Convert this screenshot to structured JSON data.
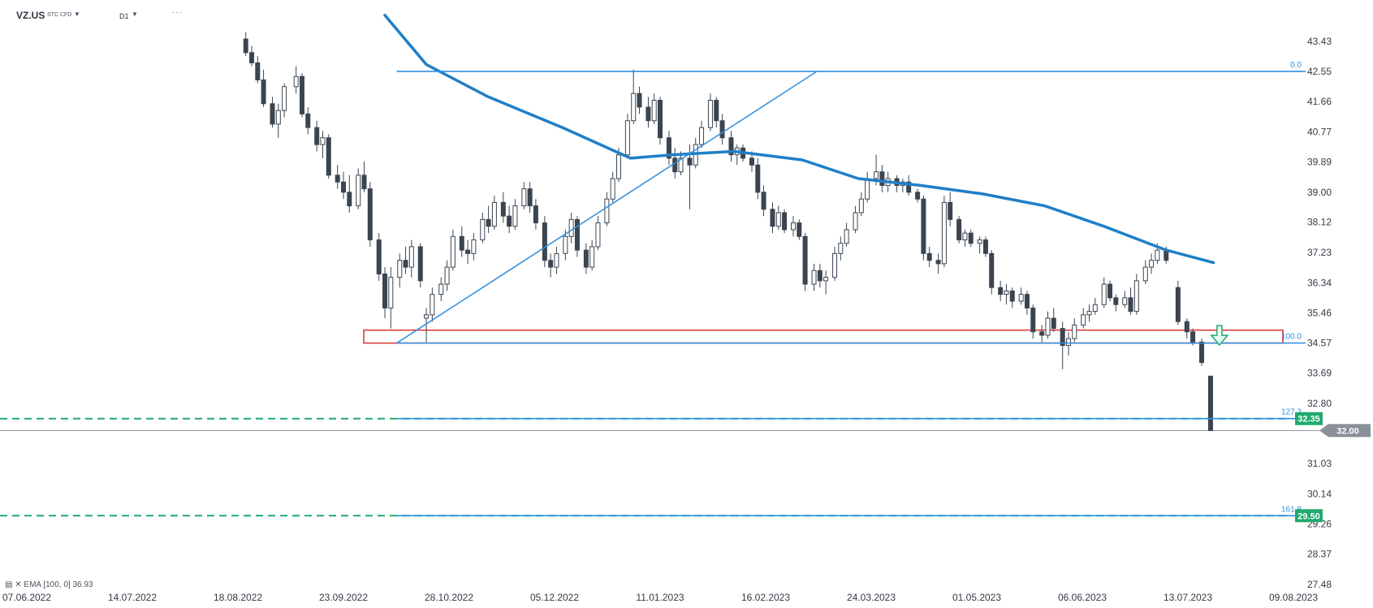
{
  "header": {
    "symbol": "VZ.US",
    "instrument_type": "STC CFD",
    "timeframe": "D1"
  },
  "indicator_legend": {
    "name": "EMA",
    "params": "[100, 0]",
    "value": "36.93"
  },
  "chart_data": {
    "type": "candlestick",
    "x_tick_labels": [
      "07.06.2022",
      "14.07.2022",
      "18.08.2022",
      "23.09.2022",
      "28.10.2022",
      "05.12.2022",
      "11.01.2023",
      "16.02.2023",
      "24.03.2023",
      "01.05.2023",
      "06.06.2023",
      "13.07.2023",
      "09.08.2023"
    ],
    "y_tick_labels": [
      "43.43",
      "42.55",
      "41.66",
      "40.77",
      "39.89",
      "39.00",
      "38.12",
      "37.23",
      "36.34",
      "35.46",
      "34.57",
      "33.69",
      "32.80",
      "31.03",
      "30.14",
      "29.26",
      "28.37",
      "27.48"
    ],
    "ylim": [
      27.48,
      43.43
    ],
    "current_price": "32.00",
    "fibonacci": [
      {
        "level": "0.0",
        "price": 42.55
      },
      {
        "level": "100.0",
        "price": 34.57
      },
      {
        "level": "127.2",
        "price": 32.35
      },
      {
        "level": "161.8",
        "price": 29.5
      }
    ],
    "horizontal_levels": [
      {
        "label": "32.35",
        "price": 32.35,
        "style": "dashed",
        "color": "#1faa6e"
      },
      {
        "label": "29.50",
        "price": 29.5,
        "style": "dashed",
        "color": "#1faa6e"
      }
    ],
    "support_zone": {
      "low": 34.57,
      "high": 34.95,
      "color": "#e03a3a"
    },
    "ema_100": [
      {
        "date": "2022-10-06",
        "value": 44.2
      },
      {
        "date": "2022-10-20",
        "value": 42.75
      },
      {
        "date": "2022-11-10",
        "value": 41.8
      },
      {
        "date": "2022-12-05",
        "value": 40.9
      },
      {
        "date": "2022-12-28",
        "value": 40.0
      },
      {
        "date": "2023-01-11",
        "value": 40.1
      },
      {
        "date": "2023-02-01",
        "value": 40.2
      },
      {
        "date": "2023-02-24",
        "value": 39.95
      },
      {
        "date": "2023-03-15",
        "value": 39.4
      },
      {
        "date": "2023-04-05",
        "value": 39.2
      },
      {
        "date": "2023-04-26",
        "value": 38.95
      },
      {
        "date": "2023-05-17",
        "value": 38.6
      },
      {
        "date": "2023-06-06",
        "value": 38.0
      },
      {
        "date": "2023-06-27",
        "value": 37.3
      },
      {
        "date": "2023-07-13",
        "value": 36.93
      }
    ],
    "trend_line": [
      {
        "date": "2022-10-10",
        "value": 34.57
      },
      {
        "date": "2023-03-01",
        "value": 42.55
      }
    ],
    "signal_arrow": {
      "direction": "down",
      "date": "2023-07-15",
      "price": 34.75,
      "color": "#1faa6e"
    },
    "candles_ohlc": [
      {
        "date": "2022-08-20",
        "o": 43.5,
        "h": 43.7,
        "l": 43.0,
        "c": 43.1
      },
      {
        "date": "2022-08-22",
        "o": 43.1,
        "h": 43.3,
        "l": 42.7,
        "c": 42.8
      },
      {
        "date": "2022-08-24",
        "o": 42.8,
        "h": 43.0,
        "l": 42.2,
        "c": 42.3
      },
      {
        "date": "2022-08-26",
        "o": 42.3,
        "h": 42.6,
        "l": 41.5,
        "c": 41.6
      },
      {
        "date": "2022-08-29",
        "o": 41.6,
        "h": 41.8,
        "l": 40.9,
        "c": 41.0
      },
      {
        "date": "2022-08-31",
        "o": 41.0,
        "h": 41.6,
        "l": 40.6,
        "c": 41.4
      },
      {
        "date": "2022-09-02",
        "o": 41.4,
        "h": 42.2,
        "l": 41.2,
        "c": 42.1
      },
      {
        "date": "2022-09-06",
        "o": 42.1,
        "h": 42.7,
        "l": 41.9,
        "c": 42.4
      },
      {
        "date": "2022-09-08",
        "o": 42.4,
        "h": 42.5,
        "l": 41.2,
        "c": 41.3
      },
      {
        "date": "2022-09-10",
        "o": 41.3,
        "h": 41.5,
        "l": 40.7,
        "c": 40.9
      },
      {
        "date": "2022-09-13",
        "o": 40.9,
        "h": 41.1,
        "l": 40.2,
        "c": 40.4
      },
      {
        "date": "2022-09-15",
        "o": 40.4,
        "h": 40.8,
        "l": 40.0,
        "c": 40.6
      },
      {
        "date": "2022-09-17",
        "o": 40.6,
        "h": 40.7,
        "l": 39.4,
        "c": 39.5
      },
      {
        "date": "2022-09-20",
        "o": 39.5,
        "h": 39.8,
        "l": 39.1,
        "c": 39.3
      },
      {
        "date": "2022-09-22",
        "o": 39.3,
        "h": 39.6,
        "l": 38.8,
        "c": 39.0
      },
      {
        "date": "2022-09-24",
        "o": 39.0,
        "h": 39.5,
        "l": 38.4,
        "c": 38.6
      },
      {
        "date": "2022-09-27",
        "o": 38.6,
        "h": 39.7,
        "l": 38.5,
        "c": 39.5
      },
      {
        "date": "2022-09-29",
        "o": 39.5,
        "h": 39.9,
        "l": 39.0,
        "c": 39.1
      },
      {
        "date": "2022-10-01",
        "o": 39.1,
        "h": 39.3,
        "l": 37.4,
        "c": 37.6
      },
      {
        "date": "2022-10-04",
        "o": 37.6,
        "h": 37.8,
        "l": 36.4,
        "c": 36.6
      },
      {
        "date": "2022-10-06",
        "o": 36.6,
        "h": 36.8,
        "l": 35.3,
        "c": 35.6
      },
      {
        "date": "2022-10-08",
        "o": 35.6,
        "h": 36.8,
        "l": 35.0,
        "c": 36.5
      },
      {
        "date": "2022-10-11",
        "o": 36.5,
        "h": 37.2,
        "l": 36.2,
        "c": 37.0
      },
      {
        "date": "2022-10-13",
        "o": 37.0,
        "h": 37.4,
        "l": 36.6,
        "c": 36.8
      },
      {
        "date": "2022-10-15",
        "o": 36.8,
        "h": 37.6,
        "l": 36.5,
        "c": 37.4
      },
      {
        "date": "2022-10-18",
        "o": 37.4,
        "h": 37.5,
        "l": 36.2,
        "c": 36.4
      },
      {
        "date": "2022-10-20",
        "o": 35.3,
        "h": 35.6,
        "l": 34.6,
        "c": 35.4
      },
      {
        "date": "2022-10-22",
        "o": 35.4,
        "h": 36.2,
        "l": 35.2,
        "c": 36.0
      },
      {
        "date": "2022-10-25",
        "o": 36.0,
        "h": 36.5,
        "l": 35.8,
        "c": 36.3
      },
      {
        "date": "2022-10-27",
        "o": 36.3,
        "h": 37.0,
        "l": 36.1,
        "c": 36.8
      },
      {
        "date": "2022-10-29",
        "o": 36.8,
        "h": 37.9,
        "l": 36.7,
        "c": 37.7
      },
      {
        "date": "2022-11-01",
        "o": 37.7,
        "h": 38.0,
        "l": 37.1,
        "c": 37.3
      },
      {
        "date": "2022-11-03",
        "o": 37.3,
        "h": 37.6,
        "l": 36.9,
        "c": 37.2
      },
      {
        "date": "2022-11-05",
        "o": 37.2,
        "h": 37.8,
        "l": 37.0,
        "c": 37.6
      },
      {
        "date": "2022-11-08",
        "o": 37.6,
        "h": 38.4,
        "l": 37.5,
        "c": 38.2
      },
      {
        "date": "2022-11-10",
        "o": 38.2,
        "h": 38.6,
        "l": 37.8,
        "c": 38.0
      },
      {
        "date": "2022-11-12",
        "o": 38.0,
        "h": 38.9,
        "l": 37.9,
        "c": 38.7
      },
      {
        "date": "2022-11-15",
        "o": 38.7,
        "h": 39.0,
        "l": 38.1,
        "c": 38.3
      },
      {
        "date": "2022-11-17",
        "o": 38.3,
        "h": 38.6,
        "l": 37.8,
        "c": 38.0
      },
      {
        "date": "2022-11-19",
        "o": 38.0,
        "h": 38.8,
        "l": 37.9,
        "c": 38.6
      },
      {
        "date": "2022-11-22",
        "o": 38.6,
        "h": 39.3,
        "l": 38.5,
        "c": 39.1
      },
      {
        "date": "2022-11-24",
        "o": 39.1,
        "h": 39.3,
        "l": 38.4,
        "c": 38.6
      },
      {
        "date": "2022-11-26",
        "o": 38.6,
        "h": 38.8,
        "l": 37.9,
        "c": 38.1
      },
      {
        "date": "2022-11-29",
        "o": 38.1,
        "h": 38.3,
        "l": 36.8,
        "c": 37.0
      },
      {
        "date": "2022-12-01",
        "o": 37.0,
        "h": 37.2,
        "l": 36.5,
        "c": 36.8
      },
      {
        "date": "2022-12-03",
        "o": 36.8,
        "h": 37.4,
        "l": 36.6,
        "c": 37.2
      },
      {
        "date": "2022-12-06",
        "o": 37.2,
        "h": 37.9,
        "l": 37.0,
        "c": 37.7
      },
      {
        "date": "2022-12-08",
        "o": 37.7,
        "h": 38.4,
        "l": 37.5,
        "c": 38.2
      },
      {
        "date": "2022-12-10",
        "o": 38.2,
        "h": 38.3,
        "l": 37.1,
        "c": 37.3
      },
      {
        "date": "2022-12-13",
        "o": 37.3,
        "h": 37.5,
        "l": 36.6,
        "c": 36.8
      },
      {
        "date": "2022-12-15",
        "o": 36.8,
        "h": 37.6,
        "l": 36.7,
        "c": 37.4
      },
      {
        "date": "2022-12-17",
        "o": 37.4,
        "h": 38.3,
        "l": 37.3,
        "c": 38.1
      },
      {
        "date": "2022-12-20",
        "o": 38.1,
        "h": 39.0,
        "l": 38.0,
        "c": 38.8
      },
      {
        "date": "2022-12-22",
        "o": 38.8,
        "h": 39.6,
        "l": 38.7,
        "c": 39.4
      },
      {
        "date": "2022-12-24",
        "o": 39.4,
        "h": 40.3,
        "l": 39.3,
        "c": 40.1
      },
      {
        "date": "2022-12-27",
        "o": 40.1,
        "h": 41.3,
        "l": 40.0,
        "c": 41.1
      },
      {
        "date": "2022-12-29",
        "o": 41.1,
        "h": 42.6,
        "l": 41.0,
        "c": 41.9
      },
      {
        "date": "2022-12-31",
        "o": 41.9,
        "h": 42.1,
        "l": 41.3,
        "c": 41.5
      },
      {
        "date": "2023-01-03",
        "o": 41.5,
        "h": 41.8,
        "l": 40.9,
        "c": 41.1
      },
      {
        "date": "2023-01-05",
        "o": 41.1,
        "h": 41.9,
        "l": 41.0,
        "c": 41.7
      },
      {
        "date": "2023-01-07",
        "o": 41.7,
        "h": 41.8,
        "l": 40.4,
        "c": 40.6
      },
      {
        "date": "2023-01-10",
        "o": 40.6,
        "h": 40.8,
        "l": 39.8,
        "c": 40.0
      },
      {
        "date": "2023-01-12",
        "o": 40.0,
        "h": 40.3,
        "l": 39.4,
        "c": 39.6
      },
      {
        "date": "2023-01-14",
        "o": 39.6,
        "h": 40.2,
        "l": 39.5,
        "c": 40.0
      },
      {
        "date": "2023-01-17",
        "o": 40.0,
        "h": 40.4,
        "l": 38.5,
        "c": 39.8
      },
      {
        "date": "2023-01-19",
        "o": 39.8,
        "h": 40.6,
        "l": 39.7,
        "c": 40.4
      },
      {
        "date": "2023-01-21",
        "o": 40.4,
        "h": 41.1,
        "l": 40.3,
        "c": 40.9
      },
      {
        "date": "2023-01-24",
        "o": 40.9,
        "h": 41.9,
        "l": 40.8,
        "c": 41.7
      },
      {
        "date": "2023-01-26",
        "o": 41.7,
        "h": 41.8,
        "l": 40.9,
        "c": 41.1
      },
      {
        "date": "2023-01-28",
        "o": 41.1,
        "h": 41.3,
        "l": 40.4,
        "c": 40.6
      },
      {
        "date": "2023-01-31",
        "o": 40.6,
        "h": 40.8,
        "l": 39.9,
        "c": 40.1
      },
      {
        "date": "2023-02-02",
        "o": 40.1,
        "h": 40.4,
        "l": 39.8,
        "c": 40.3
      },
      {
        "date": "2023-02-04",
        "o": 40.3,
        "h": 40.4,
        "l": 39.9,
        "c": 40.0
      },
      {
        "date": "2023-02-07",
        "o": 40.0,
        "h": 40.2,
        "l": 39.6,
        "c": 39.8
      },
      {
        "date": "2023-02-09",
        "o": 39.8,
        "h": 40.0,
        "l": 38.8,
        "c": 39.0
      },
      {
        "date": "2023-02-11",
        "o": 39.0,
        "h": 39.2,
        "l": 38.3,
        "c": 38.5
      },
      {
        "date": "2023-02-14",
        "o": 38.5,
        "h": 38.7,
        "l": 37.8,
        "c": 38.0
      },
      {
        "date": "2023-02-16",
        "o": 38.0,
        "h": 38.6,
        "l": 37.9,
        "c": 38.4
      },
      {
        "date": "2023-02-18",
        "o": 38.4,
        "h": 38.5,
        "l": 37.8,
        "c": 37.9
      },
      {
        "date": "2023-02-21",
        "o": 37.9,
        "h": 38.3,
        "l": 37.7,
        "c": 38.1
      },
      {
        "date": "2023-02-23",
        "o": 38.1,
        "h": 38.2,
        "l": 37.6,
        "c": 37.7
      },
      {
        "date": "2023-02-25",
        "o": 37.7,
        "h": 37.8,
        "l": 36.1,
        "c": 36.3
      },
      {
        "date": "2023-02-28",
        "o": 36.3,
        "h": 36.9,
        "l": 36.1,
        "c": 36.7
      },
      {
        "date": "2023-03-02",
        "o": 36.7,
        "h": 36.9,
        "l": 36.2,
        "c": 36.4
      },
      {
        "date": "2023-03-04",
        "o": 36.4,
        "h": 36.7,
        "l": 36.0,
        "c": 36.5
      },
      {
        "date": "2023-03-07",
        "o": 36.5,
        "h": 37.4,
        "l": 36.4,
        "c": 37.2
      },
      {
        "date": "2023-03-09",
        "o": 37.2,
        "h": 37.7,
        "l": 37.0,
        "c": 37.5
      },
      {
        "date": "2023-03-11",
        "o": 37.5,
        "h": 38.1,
        "l": 37.4,
        "c": 37.9
      },
      {
        "date": "2023-03-14",
        "o": 37.9,
        "h": 38.6,
        "l": 37.8,
        "c": 38.4
      },
      {
        "date": "2023-03-16",
        "o": 38.4,
        "h": 39.0,
        "l": 38.3,
        "c": 38.8
      },
      {
        "date": "2023-03-18",
        "o": 38.8,
        "h": 39.6,
        "l": 38.7,
        "c": 39.4
      },
      {
        "date": "2023-03-21",
        "o": 39.4,
        "h": 40.1,
        "l": 39.2,
        "c": 39.6
      },
      {
        "date": "2023-03-23",
        "o": 39.6,
        "h": 39.8,
        "l": 39.0,
        "c": 39.2
      },
      {
        "date": "2023-03-25",
        "o": 39.2,
        "h": 39.6,
        "l": 39.0,
        "c": 39.4
      },
      {
        "date": "2023-03-28",
        "o": 39.4,
        "h": 39.5,
        "l": 39.0,
        "c": 39.2
      },
      {
        "date": "2023-03-30",
        "o": 39.2,
        "h": 39.4,
        "l": 39.0,
        "c": 39.3
      },
      {
        "date": "2023-04-01",
        "o": 39.3,
        "h": 39.5,
        "l": 38.9,
        "c": 39.0
      },
      {
        "date": "2023-04-04",
        "o": 39.0,
        "h": 39.1,
        "l": 38.7,
        "c": 38.8
      },
      {
        "date": "2023-04-06",
        "o": 38.8,
        "h": 38.9,
        "l": 37.0,
        "c": 37.2
      },
      {
        "date": "2023-04-08",
        "o": 37.2,
        "h": 37.4,
        "l": 36.8,
        "c": 37.0
      },
      {
        "date": "2023-04-11",
        "o": 37.0,
        "h": 37.2,
        "l": 36.6,
        "c": 36.9
      },
      {
        "date": "2023-04-13",
        "o": 36.9,
        "h": 38.9,
        "l": 36.8,
        "c": 38.7
      },
      {
        "date": "2023-04-15",
        "o": 38.7,
        "h": 39.0,
        "l": 38.0,
        "c": 38.2
      },
      {
        "date": "2023-04-18",
        "o": 38.2,
        "h": 38.3,
        "l": 37.5,
        "c": 37.6
      },
      {
        "date": "2023-04-20",
        "o": 37.6,
        "h": 37.9,
        "l": 37.4,
        "c": 37.8
      },
      {
        "date": "2023-04-22",
        "o": 37.8,
        "h": 37.9,
        "l": 37.4,
        "c": 37.5
      },
      {
        "date": "2023-04-25",
        "o": 37.5,
        "h": 37.7,
        "l": 37.2,
        "c": 37.6
      },
      {
        "date": "2023-04-27",
        "o": 37.6,
        "h": 37.7,
        "l": 37.1,
        "c": 37.2
      },
      {
        "date": "2023-04-29",
        "o": 37.2,
        "h": 37.3,
        "l": 36.0,
        "c": 36.2
      },
      {
        "date": "2023-05-02",
        "o": 36.2,
        "h": 36.4,
        "l": 35.8,
        "c": 36.0
      },
      {
        "date": "2023-05-04",
        "o": 36.0,
        "h": 36.3,
        "l": 35.7,
        "c": 36.1
      },
      {
        "date": "2023-05-06",
        "o": 36.1,
        "h": 36.2,
        "l": 35.6,
        "c": 35.8
      },
      {
        "date": "2023-05-09",
        "o": 35.8,
        "h": 36.2,
        "l": 35.7,
        "c": 36.0
      },
      {
        "date": "2023-05-11",
        "o": 36.0,
        "h": 36.1,
        "l": 35.4,
        "c": 35.6
      },
      {
        "date": "2023-05-13",
        "o": 35.6,
        "h": 35.7,
        "l": 34.7,
        "c": 34.9
      },
      {
        "date": "2023-05-16",
        "o": 34.9,
        "h": 35.1,
        "l": 34.6,
        "c": 34.8
      },
      {
        "date": "2023-05-18",
        "o": 34.8,
        "h": 35.5,
        "l": 34.7,
        "c": 35.3
      },
      {
        "date": "2023-05-20",
        "o": 35.3,
        "h": 35.6,
        "l": 34.9,
        "c": 35.0
      },
      {
        "date": "2023-05-23",
        "o": 35.0,
        "h": 35.2,
        "l": 33.8,
        "c": 34.5
      },
      {
        "date": "2023-05-25",
        "o": 34.5,
        "h": 34.9,
        "l": 34.2,
        "c": 34.7
      },
      {
        "date": "2023-05-27",
        "o": 34.7,
        "h": 35.3,
        "l": 34.6,
        "c": 35.1
      },
      {
        "date": "2023-05-30",
        "o": 35.1,
        "h": 35.6,
        "l": 35.0,
        "c": 35.4
      },
      {
        "date": "2023-06-01",
        "o": 35.4,
        "h": 35.7,
        "l": 35.2,
        "c": 35.5
      },
      {
        "date": "2023-06-03",
        "o": 35.5,
        "h": 35.9,
        "l": 35.4,
        "c": 35.7
      },
      {
        "date": "2023-06-06",
        "o": 35.7,
        "h": 36.5,
        "l": 35.6,
        "c": 36.3
      },
      {
        "date": "2023-06-08",
        "o": 36.3,
        "h": 36.4,
        "l": 35.8,
        "c": 35.9
      },
      {
        "date": "2023-06-10",
        "o": 35.9,
        "h": 36.0,
        "l": 35.5,
        "c": 35.7
      },
      {
        "date": "2023-06-13",
        "o": 35.7,
        "h": 36.1,
        "l": 35.6,
        "c": 35.9
      },
      {
        "date": "2023-06-15",
        "o": 35.9,
        "h": 36.2,
        "l": 35.4,
        "c": 35.5
      },
      {
        "date": "2023-06-17",
        "o": 35.5,
        "h": 36.6,
        "l": 35.4,
        "c": 36.4
      },
      {
        "date": "2023-06-20",
        "o": 36.4,
        "h": 37.0,
        "l": 36.3,
        "c": 36.8
      },
      {
        "date": "2023-06-22",
        "o": 36.8,
        "h": 37.2,
        "l": 36.6,
        "c": 37.0
      },
      {
        "date": "2023-06-24",
        "o": 37.0,
        "h": 37.5,
        "l": 36.9,
        "c": 37.3
      },
      {
        "date": "2023-06-27",
        "o": 37.3,
        "h": 37.4,
        "l": 36.9,
        "c": 37.0
      },
      {
        "date": "2023-07-01",
        "o": 36.2,
        "h": 36.4,
        "l": 35.1,
        "c": 35.2
      },
      {
        "date": "2023-07-04",
        "o": 35.2,
        "h": 35.3,
        "l": 34.7,
        "c": 34.9
      },
      {
        "date": "2023-07-06",
        "o": 34.9,
        "h": 35.0,
        "l": 34.5,
        "c": 34.6
      },
      {
        "date": "2023-07-09",
        "o": 34.6,
        "h": 34.7,
        "l": 33.9,
        "c": 34.0
      },
      {
        "date": "2023-07-12",
        "o": 33.6,
        "h": 33.6,
        "l": 32.0,
        "c": 32.0
      }
    ]
  }
}
